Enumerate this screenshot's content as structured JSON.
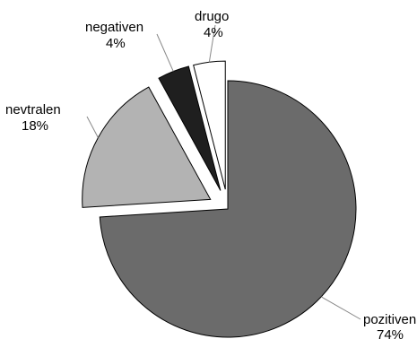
{
  "chart_data": {
    "type": "pie",
    "title": "",
    "legend": "none",
    "slices": [
      {
        "label": "pozitiven",
        "value": 74,
        "value_label": "74%",
        "color": "#6b6b6b"
      },
      {
        "label": "nevtralen",
        "value": 18,
        "value_label": "18%",
        "color": "#b3b3b3"
      },
      {
        "label": "negativen",
        "value": 4,
        "value_label": "4%",
        "color": "#1f1f1f"
      },
      {
        "label": "drugo",
        "value": 4,
        "value_label": "4%",
        "color": "#ffffff"
      }
    ]
  }
}
